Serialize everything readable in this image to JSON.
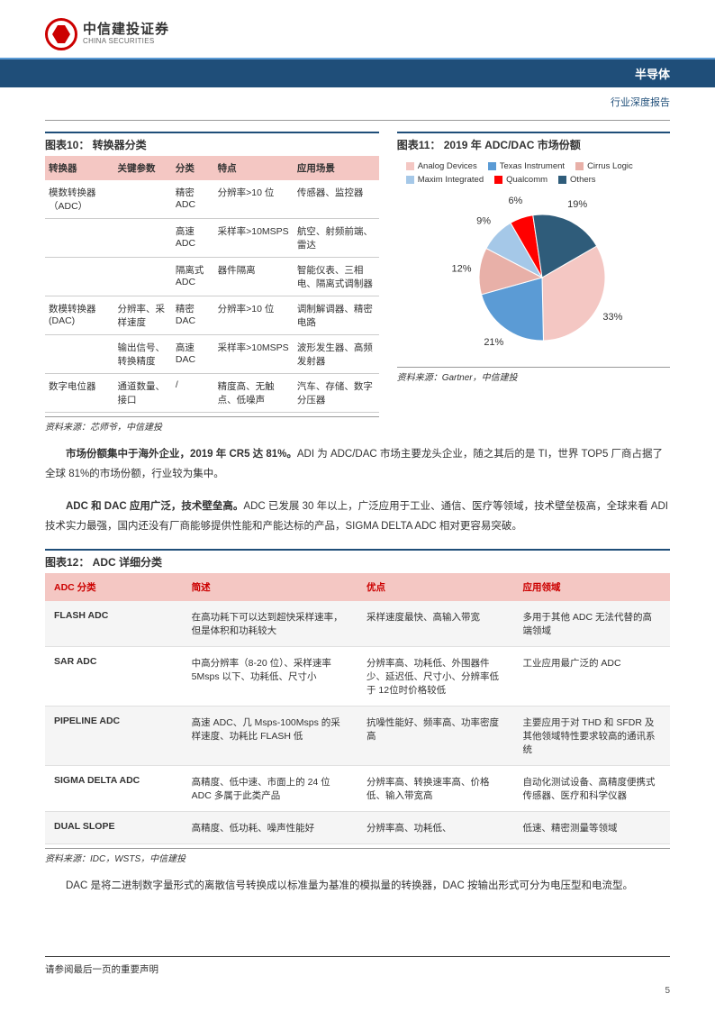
{
  "header": {
    "logo_cn": "中信建投证券",
    "logo_en": "CHINA SECURITIES",
    "sector": "半导体",
    "subtitle": "行业深度报告"
  },
  "fig10": {
    "title": "图表10：  转换器分类",
    "headers": [
      "转换器",
      "关键参数",
      "分类",
      "特点",
      "应用场景"
    ],
    "rows": [
      [
        "模数转换器（ADC）",
        "",
        "精密 ADC",
        "分辨率>10 位",
        "传感器、监控器"
      ],
      [
        "",
        "",
        "高速 ADC",
        "采样率>10MSPS",
        "航空、射频前端、雷达"
      ],
      [
        "",
        "",
        "隔离式 ADC",
        "器件隔离",
        "智能仪表、三相电、隔离式调制器"
      ],
      [
        "数模转换器(DAC)",
        "分辨率、采样速度",
        "精密 DAC",
        "分辨率>10 位",
        "调制解调器、精密电路"
      ],
      [
        "",
        "输出信号、转换精度",
        "高速 DAC",
        "采样率>10MSPS",
        "波形发生器、高频发射器"
      ],
      [
        "数字电位器",
        "通道数量、接口",
        "/",
        "精度高、无触点、低噪声",
        "汽车、存储、数字分压器"
      ]
    ],
    "source": "资料来源：芯师爷，中信建投"
  },
  "fig11": {
    "title": "图表11：  2019 年 ADC/DAC 市场份额",
    "legend": [
      {
        "label": "Analog Devices",
        "color": "#f4c7c3"
      },
      {
        "label": "Texas Instrument",
        "color": "#5b9bd5"
      },
      {
        "label": "Cirrus Logic",
        "color": "#e8b0a8"
      },
      {
        "label": "Maxim Integrated",
        "color": "#a5c8e8"
      },
      {
        "label": "Qualcomm",
        "color": "#ff0000"
      },
      {
        "label": "Others",
        "color": "#2f5c7a"
      }
    ],
    "slices": [
      {
        "label": "33%",
        "value": 33,
        "color": "#f4c7c3"
      },
      {
        "label": "21%",
        "value": 21,
        "color": "#5b9bd5"
      },
      {
        "label": "12%",
        "value": 12,
        "color": "#e8b0a8"
      },
      {
        "label": "9%",
        "value": 9,
        "color": "#a5c8e8"
      },
      {
        "label": "6%",
        "value": 6,
        "color": "#ff0000"
      },
      {
        "label": "19%",
        "value": 19,
        "color": "#2f5c7a"
      }
    ],
    "radius": 70,
    "label_radius": 90,
    "label_fontsize": 11,
    "source": "资料来源：Gartner，中信建投"
  },
  "para1_bold": "市场份额集中于海外企业，2019 年 CR5 达 81%。",
  "para1_rest": "ADI 为 ADC/DAC 市场主要龙头企业，随之其后的是 TI，世界 TOP5 厂商占据了全球 81%的市场份额，行业较为集中。",
  "para2_bold": "ADC 和 DAC 应用广泛，技术壁垒高。",
  "para2_rest": "ADC 已发展 30 年以上，广泛应用于工业、通信、医疗等领域，技术壁垒极高，全球来看 ADI 技术实力最强，国内还没有厂商能够提供性能和产能达标的产品，SIGMA DELTA ADC 相对更容易突破。",
  "fig12": {
    "title": "图表12：  ADC 详细分类",
    "headers": [
      "ADC 分类",
      "简述",
      "优点",
      "应用领域"
    ],
    "rows": [
      [
        "FLASH ADC",
        "在高功耗下可以达到超快采样速率，但是体积和功耗较大",
        "采样速度最快、高输入带宽",
        "多用于其他 ADC 无法代替的高端领域"
      ],
      [
        "SAR ADC",
        "中高分辨率（8-20 位）、采样速率5Msps 以下、功耗低、尺寸小",
        "分辨率高、功耗低、外围器件少、延迟低、尺寸小、分辨率低于 12位时价格较低",
        "工业应用最广泛的 ADC"
      ],
      [
        "PIPELINE ADC",
        "高速 ADC、几 Msps-100Msps 的采样速度、功耗比 FLASH 低",
        "抗噪性能好、频率高、功率密度高",
        "主要应用于对 THD 和 SFDR 及其他领域特性要求较高的通讯系统"
      ],
      [
        "SIGMA DELTA ADC",
        "高精度、低中速、市面上的 24 位ADC 多属于此类产品",
        "分辨率高、转换速率高、价格低、输入带宽高",
        "自动化测试设备、高精度便携式传感器、医疗和科学仪器"
      ],
      [
        "DUAL SLOPE",
        "高精度、低功耗、噪声性能好",
        "分辨率高、功耗低、",
        "低速、精密测量等领域"
      ]
    ],
    "source": "资料来源：IDC，WSTS，中信建投",
    "col_widths": [
      "22%",
      "28%",
      "25%",
      "25%"
    ]
  },
  "para3": "DAC 是将二进制数字量形式的离散信号转换成以标准量为基准的模拟量的转换器，DAC 按输出形式可分为电压型和电流型。",
  "footer": {
    "disclaimer": "请参阅最后一页的重要声明",
    "page": "5"
  }
}
